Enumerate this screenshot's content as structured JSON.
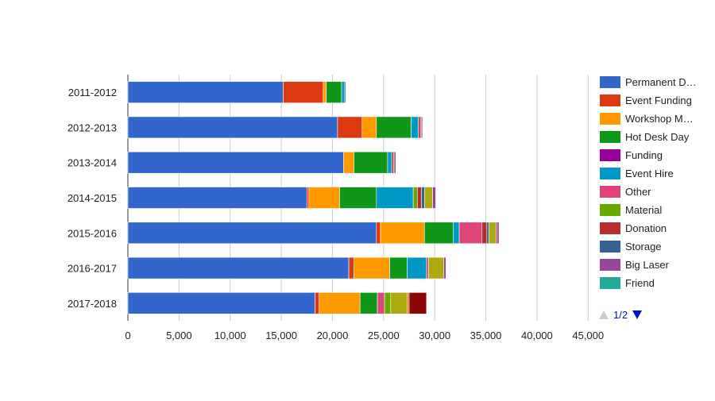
{
  "chart_data": {
    "type": "bar",
    "orientation": "horizontal",
    "stacked": true,
    "title": "",
    "xlabel": "",
    "ylabel": "",
    "xlim": [
      0,
      47000
    ],
    "x_ticks": [
      "0",
      "5,000",
      "10,000",
      "15,000",
      "20,000",
      "25,000",
      "30,000",
      "35,000",
      "40,000",
      "45,000"
    ],
    "x_tick_values": [
      0,
      5000,
      10000,
      15000,
      20000,
      25000,
      30000,
      35000,
      40000,
      45000
    ],
    "grid": "vertical",
    "legend_position": "right",
    "categories": [
      "2011-2012",
      "2012-2013",
      "2013-2014",
      "2014-2015",
      "2015-2016",
      "2016-2017",
      "2017-2018"
    ],
    "series": [
      {
        "name": "Permanent D…",
        "color": "#3366cc",
        "values": [
          15200,
          20500,
          21100,
          17500,
          24300,
          21600,
          18300
        ]
      },
      {
        "name": "Event Funding",
        "color": "#dc3912",
        "values": [
          3900,
          2400,
          0,
          200,
          400,
          500,
          400
        ]
      },
      {
        "name": "Workshop M…",
        "color": "#ff9900",
        "values": [
          300,
          1400,
          1000,
          3000,
          4300,
          3500,
          4000
        ]
      },
      {
        "name": "Hot Desk Day",
        "color": "#109618",
        "values": [
          1500,
          3400,
          3300,
          3600,
          2800,
          1700,
          1700
        ]
      },
      {
        "name": "Funding",
        "color": "#990099",
        "values": [
          0,
          0,
          0,
          0,
          0,
          0,
          0
        ]
      },
      {
        "name": "Event Hire",
        "color": "#0099c6",
        "values": [
          300,
          700,
          400,
          3600,
          600,
          1900,
          0
        ]
      },
      {
        "name": "Other",
        "color": "#dd4477",
        "values": [
          0,
          0,
          0,
          0,
          2200,
          200,
          700
        ]
      },
      {
        "name": "Material",
        "color": "#66aa00",
        "values": [
          0,
          0,
          0,
          400,
          0,
          0,
          600
        ]
      },
      {
        "name": "Donation",
        "color": "#b82e2e",
        "values": [
          0,
          200,
          200,
          400,
          500,
          0,
          0
        ]
      },
      {
        "name": "Storage",
        "color": "#316395",
        "values": [
          100,
          0,
          100,
          300,
          200,
          0,
          0
        ]
      },
      {
        "name": "Big Laser",
        "color": "#994499",
        "values": [
          0,
          0,
          0,
          0,
          0,
          0,
          0
        ]
      },
      {
        "name": "Friend",
        "color": "#22aa99",
        "values": [
          0,
          0,
          0,
          0,
          0,
          0,
          0
        ]
      },
      {
        "name": "",
        "color": "#aaaa11",
        "values": [
          0,
          0,
          0,
          800,
          700,
          1500,
          1600
        ]
      },
      {
        "name": "",
        "color": "#994499",
        "values": [
          0,
          100,
          0,
          300,
          200,
          200,
          0
        ]
      },
      {
        "name": "",
        "color": "#e67300",
        "values": [
          0,
          0,
          0,
          0,
          0,
          0,
          200
        ]
      },
      {
        "name": "",
        "color": "#8b0707",
        "values": [
          0,
          100,
          100,
          0,
          100,
          0,
          1700
        ]
      }
    ],
    "legend_visible_count": 12
  },
  "legend": {
    "pager": {
      "text": "1/2",
      "prev_color": "#cccccc",
      "next_color": "#0011cc"
    }
  }
}
